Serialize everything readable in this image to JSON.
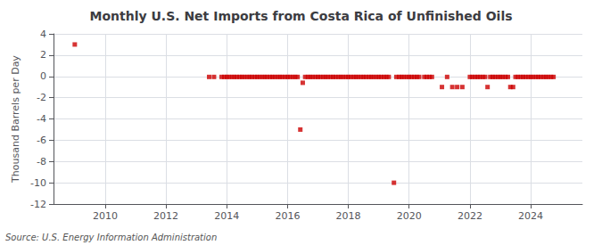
{
  "chart_data": {
    "type": "scatter",
    "title": "Monthly U.S. Net Imports from Costa Rica of Unfinished Oils",
    "ylabel": "Thousand Barrels per Day",
    "annotations": [
      "Source: U.S. Energy Information Administration"
    ],
    "color": "#cc0000",
    "marker": "square",
    "grid": true,
    "xlim": [
      2008.3,
      2025.7
    ],
    "ylim": [
      -12,
      4
    ],
    "xticks": [
      2010,
      2012,
      2014,
      2016,
      2018,
      2020,
      2022,
      2024
    ],
    "yticks": [
      4,
      2,
      0,
      -2,
      -4,
      -6,
      -8,
      -10,
      -12
    ],
    "x": [
      2009.0,
      2013.42,
      2013.58,
      2013.83,
      2013.92,
      2014.0,
      2014.08,
      2014.17,
      2014.25,
      2014.33,
      2014.42,
      2014.5,
      2014.58,
      2014.67,
      2014.75,
      2014.83,
      2014.92,
      2015.0,
      2015.08,
      2015.17,
      2015.25,
      2015.33,
      2015.42,
      2015.5,
      2015.58,
      2015.67,
      2015.75,
      2015.83,
      2015.92,
      2016.0,
      2016.08,
      2016.17,
      2016.25,
      2016.33,
      2016.42,
      2016.5,
      2016.58,
      2016.67,
      2016.75,
      2016.83,
      2016.92,
      2017.0,
      2017.08,
      2017.17,
      2017.25,
      2017.33,
      2017.42,
      2017.5,
      2017.58,
      2017.67,
      2017.75,
      2017.83,
      2017.92,
      2018.0,
      2018.08,
      2018.17,
      2018.25,
      2018.33,
      2018.42,
      2018.5,
      2018.58,
      2018.67,
      2018.75,
      2018.83,
      2018.92,
      2019.0,
      2019.08,
      2019.17,
      2019.25,
      2019.33,
      2019.5,
      2019.58,
      2019.67,
      2019.75,
      2019.83,
      2019.92,
      2020.0,
      2020.08,
      2020.17,
      2020.25,
      2020.33,
      2020.5,
      2020.58,
      2020.67,
      2020.75,
      2021.08,
      2021.25,
      2021.42,
      2021.58,
      2021.75,
      2022.0,
      2022.08,
      2022.17,
      2022.25,
      2022.33,
      2022.42,
      2022.5,
      2022.58,
      2022.67,
      2022.75,
      2022.83,
      2022.92,
      2023.0,
      2023.08,
      2023.17,
      2023.25,
      2023.33,
      2023.42,
      2023.5,
      2023.58,
      2023.67,
      2023.75,
      2023.83,
      2023.92,
      2024.0,
      2024.08,
      2024.17,
      2024.25,
      2024.33,
      2024.42,
      2024.5,
      2024.58,
      2024.67,
      2024.75
    ],
    "values": [
      3.0,
      -0.05,
      -0.05,
      -0.05,
      -0.05,
      -0.05,
      -0.05,
      -0.05,
      -0.05,
      -0.05,
      -0.05,
      -0.05,
      -0.05,
      -0.05,
      -0.05,
      -0.05,
      -0.05,
      -0.05,
      -0.05,
      -0.05,
      -0.05,
      -0.05,
      -0.05,
      -0.05,
      -0.05,
      -0.05,
      -0.05,
      -0.05,
      -0.05,
      -0.05,
      -0.05,
      -0.05,
      -0.05,
      -0.05,
      -5.0,
      -0.6,
      -0.05,
      -0.05,
      -0.05,
      -0.05,
      -0.05,
      -0.05,
      -0.05,
      -0.05,
      -0.05,
      -0.05,
      -0.05,
      -0.05,
      -0.05,
      -0.05,
      -0.05,
      -0.05,
      -0.05,
      -0.05,
      -0.05,
      -0.05,
      -0.05,
      -0.05,
      -0.05,
      -0.05,
      -0.05,
      -0.05,
      -0.05,
      -0.05,
      -0.05,
      -0.05,
      -0.05,
      -0.05,
      -0.05,
      -0.05,
      -10.0,
      -0.05,
      -0.05,
      -0.05,
      -0.05,
      -0.05,
      -0.05,
      -0.05,
      -0.05,
      -0.05,
      -0.05,
      -0.05,
      -0.05,
      -0.05,
      -0.05,
      -1.0,
      -0.05,
      -1.0,
      -1.0,
      -1.0,
      -0.05,
      -0.05,
      -0.05,
      -0.05,
      -0.05,
      -0.05,
      -0.05,
      -1.0,
      -0.05,
      -0.05,
      -0.05,
      -0.05,
      -0.05,
      -0.05,
      -0.05,
      -0.05,
      -1.0,
      -1.0,
      -0.05,
      -0.05,
      -0.05,
      -0.05,
      -0.05,
      -0.05,
      -0.05,
      -0.05,
      -0.05,
      -0.05,
      -0.05,
      -0.05,
      -0.05,
      -0.05,
      -0.05,
      -0.05
    ]
  }
}
